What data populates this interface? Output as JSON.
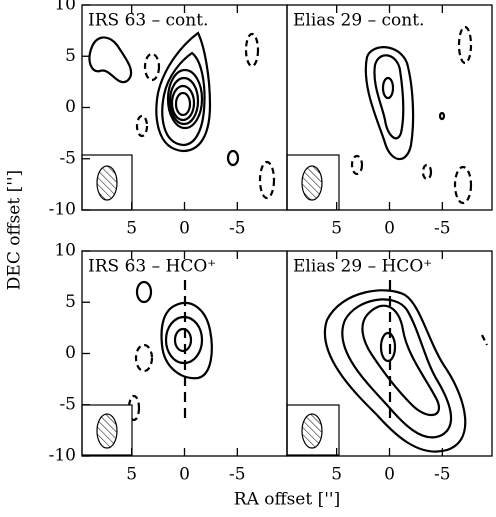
{
  "xlabel": "RA offset ['']",
  "ylabel": "DEC offset ['']",
  "chart_data": [
    {
      "type": "contour",
      "title": "IRS 63 – cont.",
      "xlim": [
        9.7,
        -9.7
      ],
      "ylim": [
        -10,
        10
      ],
      "xticks": [
        5,
        0,
        -5
      ],
      "yticks": [
        -10,
        -5,
        0,
        5,
        10
      ]
    },
    {
      "type": "contour",
      "title": "Elias 29 – cont.",
      "xlim": [
        9.7,
        -9.7
      ],
      "ylim": [
        -10,
        10
      ],
      "xticks": [
        5,
        0,
        -5
      ]
    },
    {
      "type": "contour",
      "title": "IRS 63 – HCO⁺",
      "xlim": [
        9.7,
        -9.7
      ],
      "ylim": [
        -10,
        10
      ],
      "xticks": [
        5,
        0,
        -5
      ],
      "yticks": [
        -10,
        -5,
        0,
        5,
        10
      ]
    },
    {
      "type": "contour",
      "title": "Elias 29 – HCO⁺",
      "xlim": [
        9.7,
        -9.7
      ],
      "ylim": [
        -10,
        10
      ],
      "xticks": [
        5,
        0,
        -5
      ]
    }
  ]
}
